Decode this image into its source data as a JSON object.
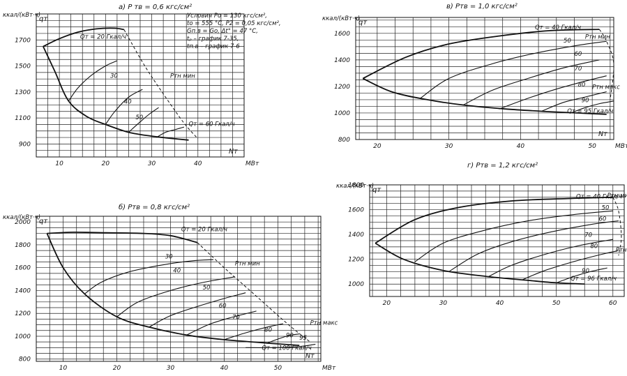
{
  "chart_data": [
    {
      "id": "a",
      "type": "line",
      "title": "а) P тв = 0,6 кгс/см²",
      "ylabel": "ккал/(кВт·ч)",
      "ysym": "qт",
      "xlabel": "Nт",
      "xunit": "МВт",
      "xlim": [
        5,
        50
      ],
      "ylim": [
        800,
        1900
      ],
      "xticks": [
        10,
        20,
        30,
        40
      ],
      "yticks": [
        900,
        1100,
        1300,
        1500,
        1700
      ],
      "conditions": [
        "Условия Pо = 130 кгс/см²,",
        "tо = 555 °С, P2 = 0,05 кгс/см²,",
        "Gп.в = Gо, Δt° = 47 °С,",
        "tₚ – график 7-35,",
        "tп.в – график 7-6"
      ],
      "labels": [
        {
          "text": "Qт = 20 Гкал/ч",
          "x": 14.5,
          "y": 1710
        },
        {
          "text": "30",
          "x": 21,
          "y": 1410
        },
        {
          "text": "40",
          "x": 24,
          "y": 1210
        },
        {
          "text": "50",
          "x": 26.5,
          "y": 1090
        },
        {
          "text": "Qт = 60 Гкал/ч",
          "x": 38,
          "y": 1040
        },
        {
          "text": "Pтн мин",
          "x": 34,
          "y": 1410
        }
      ],
      "series": [
        {
          "kind": "envelope",
          "x": [
            6.5,
            9,
            12,
            16,
            20,
            25,
            30,
            35,
            38
          ],
          "y": [
            1650,
            1460,
            1230,
            1110,
            1050,
            990,
            960,
            940,
            930
          ]
        },
        {
          "name": "20",
          "x": [
            6.5,
            10,
            14,
            18,
            22,
            24
          ],
          "y": [
            1650,
            1710,
            1760,
            1785,
            1790,
            1780
          ]
        },
        {
          "name": "30",
          "x": [
            12,
            14,
            17,
            20,
            22.5
          ],
          "y": [
            1230,
            1330,
            1430,
            1500,
            1540
          ]
        },
        {
          "name": "40",
          "x": [
            20,
            22,
            25,
            28
          ],
          "y": [
            1050,
            1150,
            1260,
            1320
          ]
        },
        {
          "name": "50",
          "x": [
            25,
            27.5,
            29.5,
            31.5
          ],
          "y": [
            990,
            1070,
            1130,
            1180
          ]
        },
        {
          "name": "60",
          "x": [
            31,
            33,
            35,
            37
          ],
          "y": [
            950,
            990,
            1010,
            1030
          ]
        },
        {
          "kind": "limit",
          "x": [
            24,
            28.5,
            33,
            37,
            40
          ],
          "y": [
            1780,
            1500,
            1260,
            1060,
            940
          ]
        }
      ]
    },
    {
      "id": "b",
      "type": "line",
      "title": "б) Pтв = 0,8 кгс/см²",
      "ylabel": "ккал/(кВт·ч)",
      "ysym": "qт",
      "xlabel": "Nт",
      "xunit": "МВт",
      "xlim": [
        5,
        58
      ],
      "ylim": [
        780,
        2050
      ],
      "xticks": [
        10,
        20,
        30,
        40,
        50
      ],
      "yticks": [
        800,
        1000,
        1200,
        1400,
        1600,
        1800,
        2000
      ],
      "labels": [
        {
          "text": "Qт = 20 Гкал/ч",
          "x": 32,
          "y": 1920
        },
        {
          "text": "30",
          "x": 29,
          "y": 1680
        },
        {
          "text": "40",
          "x": 30.5,
          "y": 1560
        },
        {
          "text": "50",
          "x": 36,
          "y": 1410
        },
        {
          "text": "60",
          "x": 39,
          "y": 1250
        },
        {
          "text": "70",
          "x": 41.5,
          "y": 1150
        },
        {
          "text": "80",
          "x": 47.5,
          "y": 1040
        },
        {
          "text": "90",
          "x": 51.5,
          "y": 990
        },
        {
          "text": "95",
          "x": 54,
          "y": 970
        },
        {
          "text": "Qт = 100 Гкал/ч",
          "x": 47,
          "y": 880
        },
        {
          "text": "Pтн мин",
          "x": 42,
          "y": 1620
        },
        {
          "text": "Pтн макс",
          "x": 56,
          "y": 1100
        }
      ],
      "series": [
        {
          "kind": "envelope",
          "x": [
            7,
            10,
            14,
            20,
            26,
            33,
            40,
            48,
            54
          ],
          "y": [
            1900,
            1600,
            1370,
            1170,
            1080,
            1010,
            970,
            940,
            920
          ]
        },
        {
          "name": "20",
          "x": [
            7,
            12,
            18,
            25,
            30,
            35
          ],
          "y": [
            1900,
            1910,
            1905,
            1900,
            1880,
            1820
          ]
        },
        {
          "name": "30",
          "x": [
            14,
            17,
            22,
            28,
            34,
            38
          ],
          "y": [
            1370,
            1470,
            1560,
            1620,
            1660,
            1670
          ]
        },
        {
          "name": "40",
          "x": [
            20,
            24,
            30,
            36,
            42
          ],
          "y": [
            1170,
            1300,
            1400,
            1470,
            1520
          ]
        },
        {
          "name": "50",
          "x": [
            26,
            30,
            35,
            40,
            44
          ],
          "y": [
            1080,
            1180,
            1260,
            1330,
            1380
          ]
        },
        {
          "name": "60",
          "x": [
            33,
            37,
            41,
            46
          ],
          "y": [
            1010,
            1100,
            1160,
            1220
          ]
        },
        {
          "name": "70",
          "x": [
            40,
            44,
            48,
            51
          ],
          "y": [
            970,
            1030,
            1080,
            1110
          ]
        },
        {
          "name": "80",
          "x": [
            48,
            50,
            52,
            54
          ],
          "y": [
            940,
            975,
            1005,
            1020
          ]
        },
        {
          "name": "100",
          "x": [
            44,
            49,
            54,
            57
          ],
          "y": [
            900,
            900,
            910,
            930
          ]
        },
        {
          "kind": "limit",
          "x": [
            35,
            40,
            46,
            52,
            56
          ],
          "y": [
            1820,
            1600,
            1350,
            1100,
            950
          ]
        }
      ]
    },
    {
      "id": "v",
      "type": "line",
      "title": "в) Pтв = 1,0 кгс/см²",
      "ylabel": "ккал/(кВт·ч)",
      "ysym": "qт",
      "xlabel": "Nт",
      "xunit": "МВт",
      "xlim": [
        17,
        53
      ],
      "ylim": [
        800,
        1720
      ],
      "xticks": [
        20,
        30,
        40,
        50
      ],
      "yticks": [
        800,
        1000,
        1200,
        1400,
        1600
      ],
      "labels": [
        {
          "text": "Qт = 40 Гкал/ч",
          "x": 42,
          "y": 1630
        },
        {
          "text": "50",
          "x": 46,
          "y": 1530
        },
        {
          "text": "60",
          "x": 47.5,
          "y": 1430
        },
        {
          "text": "70",
          "x": 47.5,
          "y": 1320
        },
        {
          "text": "80",
          "x": 48,
          "y": 1200
        },
        {
          "text": "90",
          "x": 48.5,
          "y": 1080
        },
        {
          "text": "Qт = 95 Гкал/ч",
          "x": 46.5,
          "y": 1000
        },
        {
          "text": "Pтн мин",
          "x": 49,
          "y": 1560
        },
        {
          "text": "Pтн макс",
          "x": 50,
          "y": 1180
        }
      ],
      "series": [
        {
          "kind": "envelope",
          "x": [
            18,
            22,
            27,
            32,
            38,
            44,
            48,
            52
          ],
          "y": [
            1260,
            1160,
            1100,
            1060,
            1030,
            1010,
            1000,
            990
          ]
        },
        {
          "name": "40",
          "x": [
            18,
            24,
            30,
            37,
            44,
            51
          ],
          "y": [
            1260,
            1420,
            1520,
            1580,
            1620,
            1630
          ]
        },
        {
          "name": "50",
          "x": [
            26,
            30,
            36,
            42,
            48,
            52
          ],
          "y": [
            1110,
            1260,
            1370,
            1450,
            1510,
            1540
          ]
        },
        {
          "name": "60",
          "x": [
            32,
            36,
            41,
            46,
            51
          ],
          "y": [
            1060,
            1170,
            1260,
            1340,
            1400
          ]
        },
        {
          "name": "70",
          "x": [
            37,
            41,
            45,
            49,
            52
          ],
          "y": [
            1030,
            1110,
            1180,
            1240,
            1280
          ]
        },
        {
          "name": "80",
          "x": [
            43,
            46,
            49,
            52
          ],
          "y": [
            1015,
            1080,
            1120,
            1160
          ]
        },
        {
          "name": "90",
          "x": [
            47,
            49,
            51,
            53
          ],
          "y": [
            1000,
            1040,
            1070,
            1090
          ]
        },
        {
          "kind": "limit",
          "x": [
            51,
            52,
            53,
            52.5
          ],
          "y": [
            1630,
            1540,
            1370,
            1100
          ]
        }
      ]
    },
    {
      "id": "g",
      "type": "line",
      "title": "г) Pтв = 1,2 кгс/см²",
      "ylabel": "ккал/(кВт·ч)",
      "ysym": "qт",
      "xlabel": "",
      "xunit": "",
      "xlim": [
        17,
        62
      ],
      "ylim": [
        900,
        1800
      ],
      "xticks": [
        20,
        30,
        40,
        50,
        60
      ],
      "yticks": [
        1000,
        1200,
        1400,
        1600,
        1800
      ],
      "labels": [
        {
          "text": "Qт = 40 Гкал/ч",
          "x": 53.5,
          "y": 1690
        },
        {
          "text": "50",
          "x": 58,
          "y": 1600
        },
        {
          "text": "60",
          "x": 57.5,
          "y": 1510
        },
        {
          "text": "70",
          "x": 55,
          "y": 1380
        },
        {
          "text": "80",
          "x": 56,
          "y": 1290
        },
        {
          "text": "90",
          "x": 54.5,
          "y": 1090
        },
        {
          "text": "Qт = 96 Гкал/ч",
          "x": 52.5,
          "y": 1030
        },
        {
          "text": "Pтн мин",
          "x": 59,
          "y": 1700
        },
        {
          "text": "Pтн макс",
          "x": 60.5,
          "y": 1260
        }
      ],
      "series": [
        {
          "kind": "envelope",
          "x": [
            18,
            23,
            30,
            38,
            45,
            50,
            55
          ],
          "y": [
            1330,
            1200,
            1110,
            1060,
            1030,
            1010,
            1000
          ]
        },
        {
          "name": "40",
          "x": [
            18,
            25,
            33,
            42,
            52,
            60
          ],
          "y": [
            1330,
            1520,
            1620,
            1670,
            1690,
            1700
          ]
        },
        {
          "name": "50",
          "x": [
            25,
            30,
            37,
            45,
            53,
            60
          ],
          "y": [
            1180,
            1330,
            1430,
            1510,
            1560,
            1590
          ]
        },
        {
          "name": "60",
          "x": [
            31,
            36,
            42,
            49,
            56,
            61
          ],
          "y": [
            1100,
            1240,
            1340,
            1420,
            1480,
            1510
          ]
        },
        {
          "name": "70",
          "x": [
            38,
            42,
            48,
            54,
            60
          ],
          "y": [
            1060,
            1150,
            1240,
            1310,
            1360
          ]
        },
        {
          "name": "80",
          "x": [
            44,
            48,
            53,
            58,
            61
          ],
          "y": [
            1035,
            1110,
            1180,
            1240,
            1270
          ]
        },
        {
          "name": "90",
          "x": [
            50,
            53,
            56,
            59
          ],
          "y": [
            1010,
            1060,
            1100,
            1130
          ]
        },
        {
          "kind": "limit",
          "x": [
            60,
            61,
            61.5,
            61
          ],
          "y": [
            1700,
            1590,
            1380,
            1230
          ]
        }
      ]
    }
  ]
}
